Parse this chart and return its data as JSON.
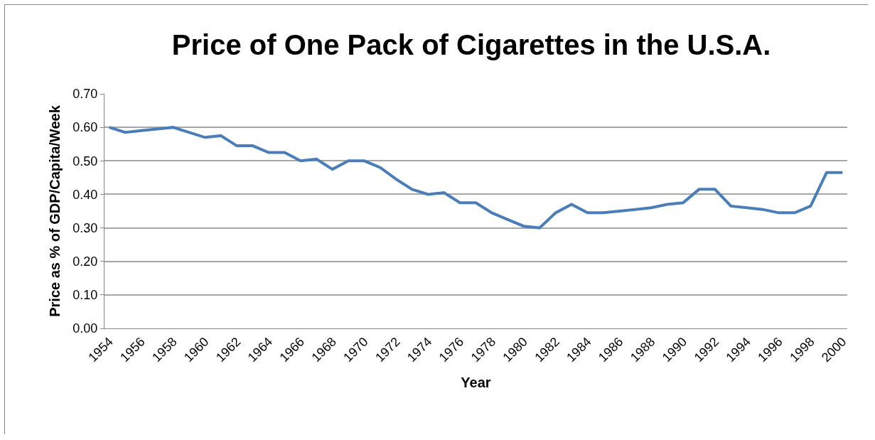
{
  "chart_data": {
    "type": "line",
    "title": "Price of One Pack of Cigarettes in the U.S.A.",
    "xlabel": "Year",
    "ylabel": "Price as % of GDP/Capita/Week",
    "categories": [
      "1954",
      null,
      "1956",
      null,
      "1958",
      null,
      "1960",
      null,
      "1962",
      null,
      "1964",
      null,
      "1966",
      null,
      "1968",
      null,
      "1970",
      null,
      "1972",
      null,
      "1974",
      null,
      "1976",
      null,
      "1978",
      null,
      "1980",
      null,
      "1982",
      null,
      "1984",
      null,
      "1986",
      null,
      "1988",
      null,
      "1990",
      null,
      "1992",
      null,
      "1994",
      null,
      "1996",
      null,
      "1998",
      null,
      "2000"
    ],
    "series": [
      {
        "color": "#4a7ebb",
        "values": [
          0.6,
          0.585,
          0.59,
          0.595,
          0.6,
          0.585,
          0.57,
          0.575,
          0.545,
          0.545,
          0.525,
          0.525,
          0.5,
          0.505,
          0.475,
          0.5,
          0.5,
          0.48,
          0.445,
          0.415,
          0.4,
          0.405,
          0.375,
          0.375,
          0.345,
          0.325,
          0.305,
          0.3,
          0.345,
          0.37,
          0.345,
          0.345,
          0.35,
          0.355,
          0.36,
          0.37,
          0.375,
          0.415,
          0.415,
          0.365,
          0.36,
          0.355,
          0.345,
          0.345,
          0.365,
          0.465,
          0.465
        ]
      }
    ],
    "ylim": [
      0,
      0.7
    ],
    "yticks": [
      {
        "value": 0,
        "label": "0.00"
      },
      {
        "value": 0.1,
        "label": "0.10"
      },
      {
        "value": 0.2,
        "label": "0.20"
      },
      {
        "value": 0.3,
        "label": "0.30"
      },
      {
        "value": 0.4,
        "label": "0.40"
      },
      {
        "value": 0.5,
        "label": "0.50"
      },
      {
        "value": 0.6,
        "label": "0.60"
      },
      {
        "value": 0.7,
        "label": "0.70"
      }
    ],
    "grid": "y",
    "marker": "none",
    "line_style": "solid"
  }
}
